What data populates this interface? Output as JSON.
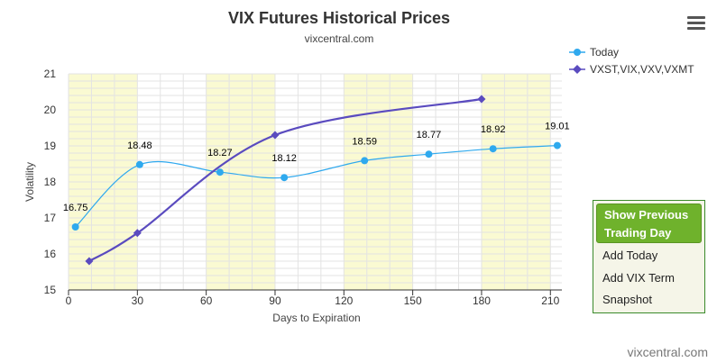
{
  "menu": {
    "icon": "hamburger-menu-icon"
  },
  "side_panel": {
    "primary_button": "Show Previous Trading Day",
    "links": [
      "Add Today",
      "Add VIX Term",
      "Snapshot"
    ]
  },
  "credit": "vixcentral.com",
  "colors": {
    "today": "#2fa9ee",
    "vxst": "#5a4bbf",
    "band": "#fafad2",
    "grid": "#e3e3e3"
  },
  "chart_data": {
    "type": "line",
    "title": "VIX Futures Historical Prices",
    "subtitle": "vixcentral.com",
    "xlabel": "Days to Expiration",
    "ylabel": "Volatility",
    "xlim": [
      0,
      215
    ],
    "ylim": [
      15,
      21
    ],
    "x_ticks": [
      0,
      30,
      60,
      90,
      120,
      150,
      180,
      210
    ],
    "y_ticks": [
      15,
      16,
      17,
      18,
      19,
      20,
      21
    ],
    "grid": true,
    "legend_position": "top-right",
    "series": [
      {
        "name": "Today",
        "marker": "circle",
        "x": [
          3,
          31,
          66,
          94,
          129,
          157,
          185,
          213
        ],
        "y": [
          16.75,
          18.48,
          18.27,
          18.12,
          18.59,
          18.77,
          18.92,
          19.01
        ],
        "labels": [
          "16.75",
          "18.48",
          "18.27",
          "18.12",
          "18.59",
          "18.77",
          "18.92",
          "19.01"
        ]
      },
      {
        "name": "VXST,VIX,VXV,VXMT",
        "marker": "diamond",
        "x": [
          9,
          30,
          90,
          180
        ],
        "y": [
          15.8,
          16.58,
          19.3,
          20.3
        ]
      }
    ]
  }
}
